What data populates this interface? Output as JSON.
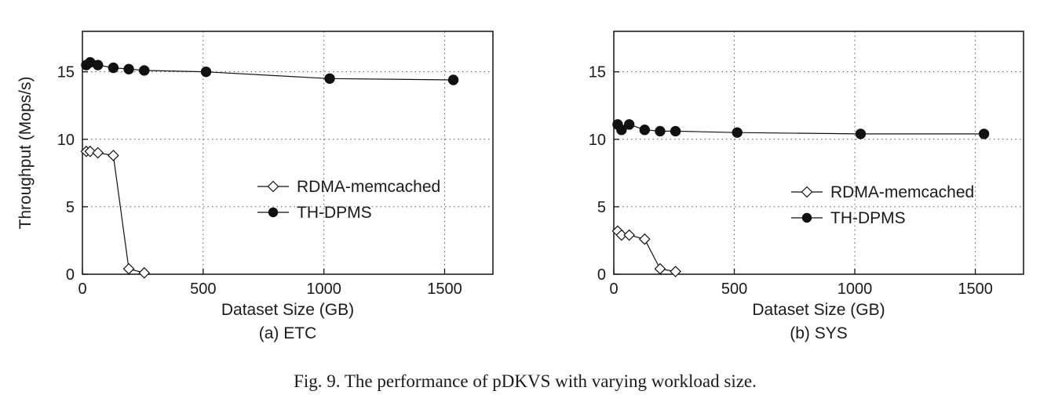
{
  "chart_data": [
    {
      "type": "line",
      "subtitle": "(a) ETC",
      "xlabel": "Dataset Size (GB)",
      "ylabel": "Throughput (Mops/s)",
      "xlim": [
        0,
        1700
      ],
      "ylim": [
        0,
        18
      ],
      "xticks": [
        0,
        500,
        1000,
        1500
      ],
      "yticks": [
        0,
        5,
        10,
        15
      ],
      "grid": true,
      "legend_position": "center-right",
      "series": [
        {
          "name": "RDMA-memcached",
          "marker": "open-diamond",
          "x": [
            16,
            32,
            64,
            128,
            192,
            256
          ],
          "y": [
            9.1,
            9.1,
            9.0,
            8.8,
            0.4,
            0.1
          ]
        },
        {
          "name": "TH-DPMS",
          "marker": "filled-circle",
          "x": [
            16,
            32,
            64,
            128,
            192,
            256,
            512,
            1024,
            1536
          ],
          "y": [
            15.5,
            15.7,
            15.5,
            15.3,
            15.2,
            15.1,
            15.0,
            14.5,
            14.4
          ]
        }
      ]
    },
    {
      "type": "line",
      "subtitle": "(b) SYS",
      "xlabel": "Dataset Size (GB)",
      "ylabel": "",
      "xlim": [
        0,
        1700
      ],
      "ylim": [
        0,
        18
      ],
      "xticks": [
        0,
        500,
        1000,
        1500
      ],
      "yticks": [
        0,
        5,
        10,
        15
      ],
      "grid": true,
      "legend_position": "lower-right",
      "series": [
        {
          "name": "RDMA-memcached",
          "marker": "open-diamond",
          "x": [
            16,
            32,
            64,
            128,
            192,
            256
          ],
          "y": [
            3.2,
            2.9,
            2.9,
            2.6,
            0.4,
            0.2
          ]
        },
        {
          "name": "TH-DPMS",
          "marker": "filled-circle",
          "x": [
            16,
            32,
            64,
            128,
            192,
            256,
            512,
            1024,
            1536
          ],
          "y": [
            11.1,
            10.7,
            11.1,
            10.7,
            10.6,
            10.6,
            10.5,
            10.4,
            10.4
          ]
        }
      ]
    }
  ],
  "caption": "Fig. 9.  The performance of pDKVS with varying workload size."
}
